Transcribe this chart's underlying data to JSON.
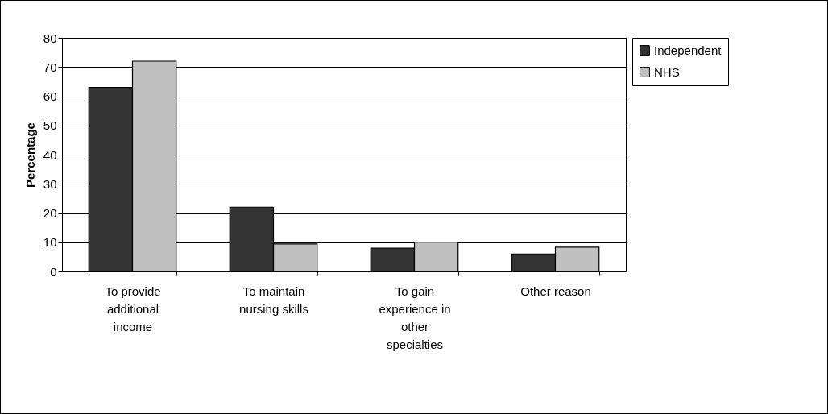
{
  "chart_data": {
    "type": "bar",
    "ylabel": "Percentage",
    "categories": [
      "To provide additional income",
      "To maintain nursing skills",
      "To gain experience in other specialties",
      "Other reason"
    ],
    "series": [
      {
        "name": "Independent",
        "color": "#333333",
        "values": [
          63,
          22,
          8,
          6
        ]
      },
      {
        "name": "NHS",
        "color": "#c0c0c0",
        "values": [
          72,
          9.4,
          10,
          8.3
        ]
      }
    ],
    "ylim": [
      0,
      80
    ],
    "yticks": [
      0,
      10,
      20,
      30,
      40,
      50,
      60,
      70,
      80
    ],
    "grid": "y",
    "legend": "right"
  }
}
